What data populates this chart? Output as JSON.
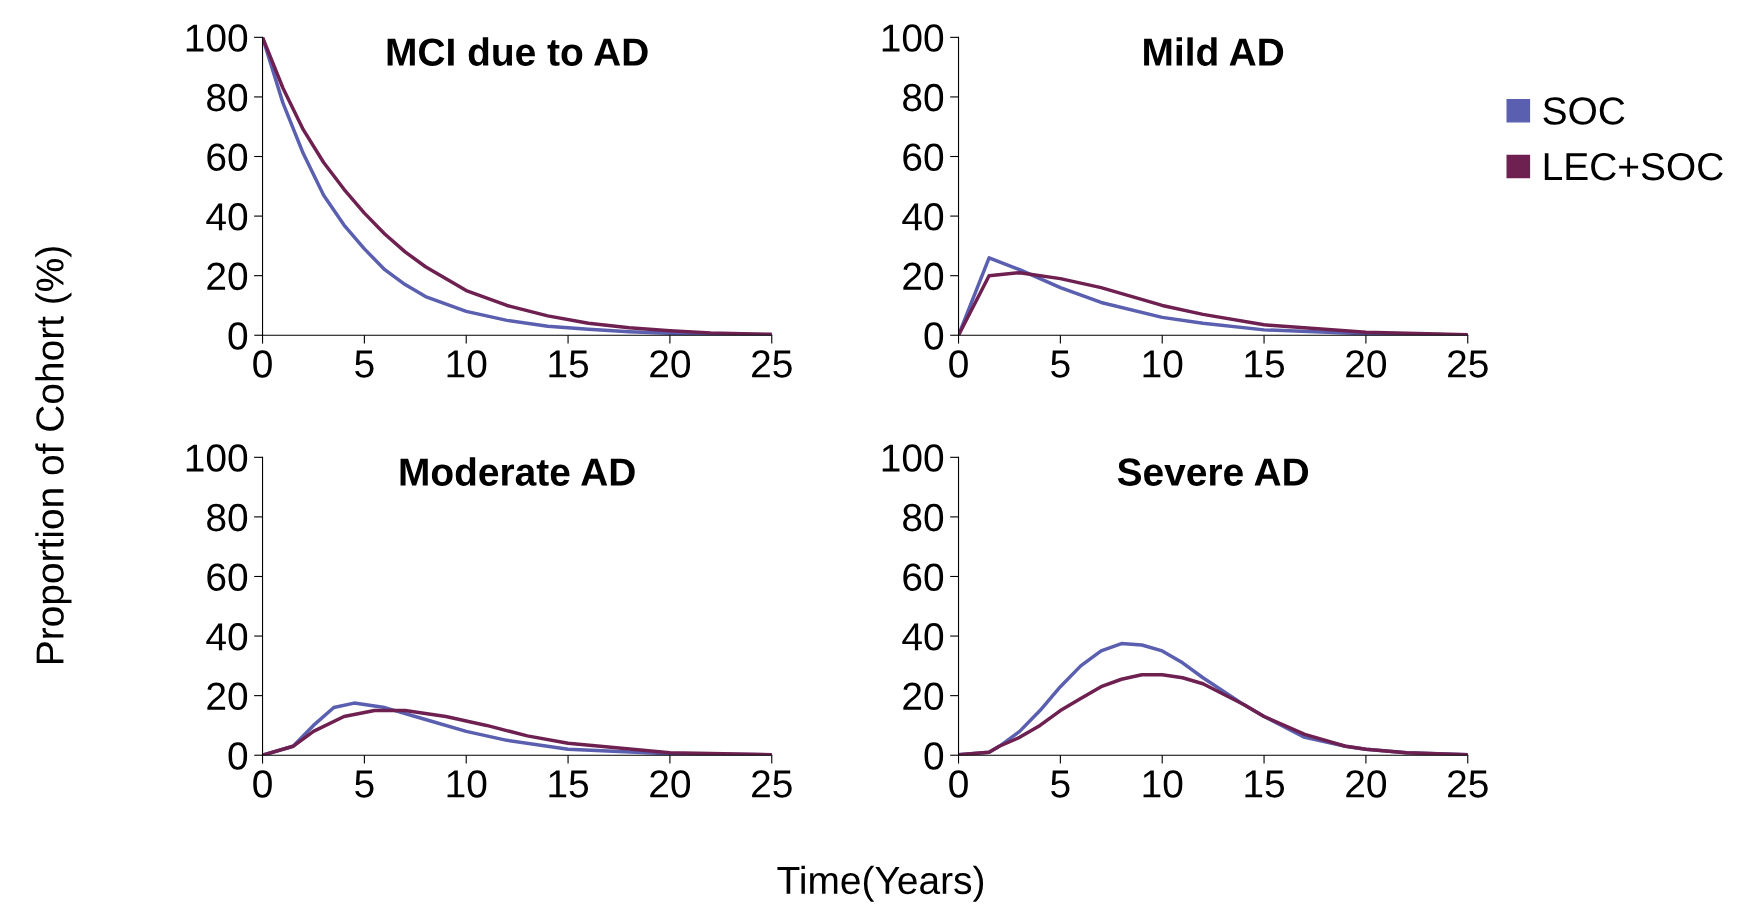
{
  "chart_data": [
    {
      "type": "line",
      "title": "MCI due to AD",
      "ylabel": "Proportion of Cohort (%)",
      "xlabel": "Time(Years)",
      "xlim": [
        0,
        25
      ],
      "ylim": [
        0,
        100
      ],
      "xticks": [
        0,
        5,
        10,
        15,
        20,
        25
      ],
      "yticks": [
        0,
        20,
        40,
        60,
        80,
        100
      ],
      "grid": false,
      "legend": false,
      "series": [
        {
          "color": "#5a5fb0",
          "x": [
            0,
            1,
            2,
            3,
            4,
            5,
            6,
            7,
            8,
            10,
            12,
            14,
            16,
            18,
            20,
            22,
            25
          ],
          "values": [
            100,
            78,
            61,
            47,
            37,
            29,
            22,
            17,
            13,
            8,
            5,
            3,
            2,
            1.2,
            0.7,
            0.4,
            0.2
          ]
        },
        {
          "color": "#6e2150",
          "x": [
            0,
            1,
            2,
            3,
            4,
            5,
            6,
            7,
            8,
            10,
            12,
            14,
            16,
            18,
            20,
            22,
            25
          ],
          "values": [
            100,
            83,
            69,
            58,
            49,
            41,
            34,
            28,
            23,
            15,
            10,
            6.5,
            4,
            2.5,
            1.5,
            0.8,
            0.3
          ]
        }
      ]
    },
    {
      "type": "line",
      "title": "Mild AD",
      "xlim": [
        0,
        25
      ],
      "ylim": [
        0,
        100
      ],
      "xticks": [
        0,
        5,
        10,
        15,
        20,
        25
      ],
      "yticks": [
        0,
        20,
        40,
        60,
        80,
        100
      ],
      "grid": false,
      "legend": "right",
      "series": [
        {
          "name": "SOC",
          "color": "#5a5fb0",
          "x": [
            0,
            1.5,
            3,
            5,
            7,
            10,
            12,
            15,
            20,
            25
          ],
          "values": [
            0,
            26,
            22,
            16,
            11,
            6,
            4,
            1.8,
            0.5,
            0.1
          ]
        },
        {
          "name": "LEC+SOC",
          "color": "#6e2150",
          "x": [
            0,
            1.5,
            3,
            5,
            7,
            10,
            12,
            15,
            20,
            25
          ],
          "values": [
            0,
            20,
            21,
            19,
            16,
            10,
            7,
            3.5,
            1,
            0.2
          ]
        }
      ]
    },
    {
      "type": "line",
      "title": "Moderate AD",
      "xlim": [
        0,
        25
      ],
      "ylim": [
        0,
        100
      ],
      "xticks": [
        0,
        5,
        10,
        15,
        20,
        25
      ],
      "yticks": [
        0,
        20,
        40,
        60,
        80,
        100
      ],
      "grid": false,
      "legend": false,
      "series": [
        {
          "color": "#5a5fb0",
          "x": [
            0,
            1.5,
            2.5,
            3.5,
            4.5,
            6,
            8,
            10,
            12,
            15,
            20,
            25
          ],
          "values": [
            0,
            3,
            10,
            16,
            17.5,
            16,
            12,
            8,
            5,
            2,
            0.5,
            0.1
          ]
        },
        {
          "color": "#6e2150",
          "x": [
            0,
            1.5,
            2.5,
            4,
            5.5,
            7,
            9,
            11,
            13,
            15,
            20,
            25
          ],
          "values": [
            0,
            3,
            8,
            13,
            15,
            15,
            13,
            10,
            6.5,
            4,
            0.8,
            0.2
          ]
        }
      ]
    },
    {
      "type": "line",
      "title": "Severe AD",
      "xlim": [
        0,
        25
      ],
      "ylim": [
        0,
        100
      ],
      "xticks": [
        0,
        5,
        10,
        15,
        20,
        25
      ],
      "yticks": [
        0,
        20,
        40,
        60,
        80,
        100
      ],
      "grid": false,
      "legend": false,
      "series": [
        {
          "color": "#5a5fb0",
          "x": [
            0,
            1.5,
            2,
            3,
            4,
            5,
            6,
            7,
            8,
            9,
            10,
            11,
            12,
            14,
            15,
            17,
            19,
            20,
            22,
            25
          ],
          "values": [
            0.2,
            1,
            3,
            8,
            15,
            23,
            30,
            35,
            37.5,
            37,
            35,
            31,
            26,
            17,
            13,
            6,
            3,
            2,
            0.8,
            0.2
          ]
        },
        {
          "color": "#6e2150",
          "x": [
            0,
            1.5,
            2,
            3,
            4,
            5,
            6,
            7,
            8,
            9,
            10,
            11,
            12,
            14,
            15,
            17,
            19,
            20,
            22,
            25
          ],
          "values": [
            0.2,
            1,
            3,
            6,
            10,
            15,
            19,
            23,
            25.5,
            27,
            27,
            26,
            24,
            17,
            13,
            7,
            3,
            2,
            0.8,
            0.2
          ]
        }
      ]
    }
  ]
}
